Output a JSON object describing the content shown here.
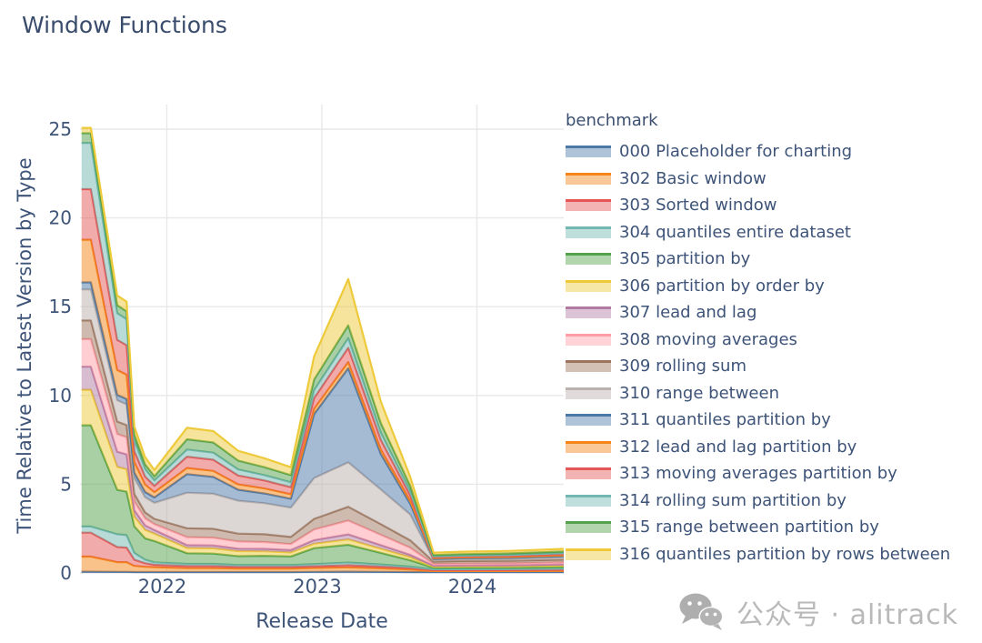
{
  "title": "Window Functions",
  "watermark": "公众号 · alitrack",
  "theme": {
    "text_color": "#3d5377",
    "title_color": "#3a4c6b",
    "grid_color": "#e8e8e8",
    "watermark_color": "#b9b9b9",
    "background": "#ffffff"
  },
  "chart_data": {
    "type": "area",
    "stacked": true,
    "title": "Window Functions",
    "xlabel": "Release Date",
    "ylabel": "Time Relative to Latest Version by Type",
    "legend_title": "benchmark",
    "legend_position": "right",
    "grid": true,
    "fill_opacity": 0.5,
    "ylim": [
      0,
      25
    ],
    "xlim": [
      2021.44,
      2024.56
    ],
    "yticks": [
      {
        "value": 0,
        "label": "0"
      },
      {
        "value": 5,
        "label": "5"
      },
      {
        "value": 10,
        "label": "10"
      },
      {
        "value": 15,
        "label": "15"
      },
      {
        "value": 20,
        "label": "20"
      },
      {
        "value": 25,
        "label": "25"
      }
    ],
    "xticks": [
      {
        "value": 2022,
        "label": "2022"
      },
      {
        "value": 2023,
        "label": "2023"
      },
      {
        "value": 2024,
        "label": "2024"
      }
    ],
    "x_unit": "release date, decimal years (mid-2021 to late-2024)",
    "x": [
      2021.45,
      2021.51,
      2021.68,
      2021.74,
      2021.79,
      2021.86,
      2021.92,
      2022.13,
      2022.3,
      2022.46,
      2022.63,
      2022.8,
      2022.95,
      2023.17,
      2023.38,
      2023.57,
      2023.72,
      2023.9,
      2024.2,
      2024.56
    ],
    "stack_order": "series listed bottom-to-top",
    "series": [
      {
        "name": "000 Placeholder for charting",
        "color": "#4c78a8",
        "values": [
          0.07,
          0.07,
          0.06,
          0.06,
          0.05,
          0.05,
          0.05,
          0.05,
          0.05,
          0.05,
          0.05,
          0.05,
          0.06,
          0.07,
          0.06,
          0.05,
          0.05,
          0.05,
          0.05,
          0.05
        ]
      },
      {
        "name": "302 Basic window",
        "color": "#f58518",
        "values": [
          0.85,
          0.85,
          0.55,
          0.55,
          0.35,
          0.3,
          0.28,
          0.22,
          0.22,
          0.2,
          0.2,
          0.2,
          0.22,
          0.25,
          0.2,
          0.15,
          0.06,
          0.06,
          0.06,
          0.07
        ]
      },
      {
        "name": "303 Sorted window",
        "color": "#e45756",
        "values": [
          1.35,
          1.35,
          0.85,
          0.82,
          0.35,
          0.2,
          0.13,
          0.12,
          0.12,
          0.1,
          0.1,
          0.1,
          0.1,
          0.12,
          0.1,
          0.08,
          0.05,
          0.05,
          0.05,
          0.06
        ]
      },
      {
        "name": "304 quantiles entire dataset",
        "color": "#72b7b2",
        "values": [
          0.35,
          0.35,
          0.72,
          0.7,
          0.38,
          0.2,
          0.14,
          0.12,
          0.12,
          0.1,
          0.1,
          0.1,
          0.12,
          0.15,
          0.12,
          0.08,
          0.05,
          0.05,
          0.06,
          0.06
        ]
      },
      {
        "name": "305 partition by",
        "color": "#54a24b",
        "values": [
          5.7,
          5.7,
          2.5,
          2.45,
          1.5,
          1.2,
          1.2,
          0.6,
          0.58,
          0.5,
          0.52,
          0.48,
          0.9,
          1.0,
          0.65,
          0.35,
          0.09,
          0.1,
          0.1,
          0.11
        ]
      },
      {
        "name": "306 partition by order by",
        "color": "#eeca3b",
        "values": [
          2.0,
          2.0,
          1.3,
          1.27,
          0.55,
          0.48,
          0.42,
          0.3,
          0.3,
          0.28,
          0.25,
          0.23,
          0.25,
          0.3,
          0.24,
          0.18,
          0.06,
          0.06,
          0.06,
          0.07
        ]
      },
      {
        "name": "307 lead and lag",
        "color": "#b279a2",
        "values": [
          1.3,
          1.3,
          0.85,
          0.83,
          0.35,
          0.25,
          0.2,
          0.16,
          0.16,
          0.14,
          0.14,
          0.13,
          0.2,
          0.28,
          0.2,
          0.13,
          0.05,
          0.05,
          0.05,
          0.06
        ]
      },
      {
        "name": "308 moving averages",
        "color": "#ff9da6",
        "values": [
          1.55,
          1.55,
          1.0,
          0.97,
          0.5,
          0.4,
          0.33,
          0.45,
          0.44,
          0.4,
          0.38,
          0.34,
          0.6,
          0.78,
          0.58,
          0.4,
          0.1,
          0.11,
          0.11,
          0.12
        ]
      },
      {
        "name": "309 rolling sum",
        "color": "#9d755d",
        "values": [
          1.05,
          1.05,
          0.7,
          0.68,
          0.42,
          0.33,
          0.3,
          0.5,
          0.5,
          0.45,
          0.44,
          0.4,
          0.6,
          0.78,
          0.6,
          0.42,
          0.13,
          0.14,
          0.14,
          0.15
        ]
      },
      {
        "name": "310 range between",
        "color": "#bab0ac",
        "values": [
          1.75,
          1.75,
          1.2,
          1.17,
          0.9,
          0.85,
          0.9,
          2.0,
          1.97,
          1.85,
          1.75,
          1.65,
          2.3,
          2.5,
          1.95,
          1.45,
          0.1,
          0.11,
          0.12,
          0.13
        ]
      },
      {
        "name": "311 quantiles partition by",
        "color": "#4c78a8",
        "values": [
          0.4,
          0.4,
          0.3,
          0.3,
          0.3,
          0.3,
          0.3,
          1.05,
          0.95,
          0.62,
          0.55,
          0.5,
          3.6,
          5.3,
          2.0,
          0.6,
          0.05,
          0.05,
          0.05,
          0.06
        ]
      },
      {
        "name": "312 lead and lag partition by",
        "color": "#f58518",
        "values": [
          2.4,
          2.4,
          1.4,
          1.37,
          0.6,
          0.42,
          0.3,
          0.34,
          0.34,
          0.3,
          0.28,
          0.25,
          0.3,
          0.35,
          0.25,
          0.18,
          0.05,
          0.05,
          0.05,
          0.06
        ]
      },
      {
        "name": "313 moving averages partition by",
        "color": "#e45756",
        "values": [
          2.85,
          2.85,
          1.7,
          1.66,
          0.62,
          0.45,
          0.36,
          0.64,
          0.63,
          0.5,
          0.45,
          0.4,
          0.6,
          0.8,
          0.55,
          0.3,
          0.05,
          0.05,
          0.06,
          0.06
        ]
      },
      {
        "name": "314 rolling sum partition by",
        "color": "#72b7b2",
        "values": [
          2.6,
          2.6,
          1.5,
          1.47,
          0.6,
          0.42,
          0.3,
          0.4,
          0.4,
          0.34,
          0.3,
          0.28,
          0.45,
          0.55,
          0.4,
          0.24,
          0.05,
          0.05,
          0.06,
          0.06
        ]
      },
      {
        "name": "315 range between partition by",
        "color": "#54a24b",
        "values": [
          0.55,
          0.55,
          0.45,
          0.44,
          0.33,
          0.27,
          0.24,
          0.58,
          0.57,
          0.5,
          0.45,
          0.4,
          0.6,
          0.72,
          0.55,
          0.3,
          0.07,
          0.08,
          0.08,
          0.09
        ]
      },
      {
        "name": "316 quantiles partition by rows between",
        "color": "#eeca3b",
        "values": [
          0.3,
          0.3,
          0.55,
          0.54,
          0.45,
          0.4,
          0.35,
          0.65,
          0.64,
          0.55,
          0.5,
          0.45,
          1.3,
          2.6,
          1.2,
          0.5,
          0.13,
          0.14,
          0.14,
          0.15
        ]
      }
    ]
  }
}
